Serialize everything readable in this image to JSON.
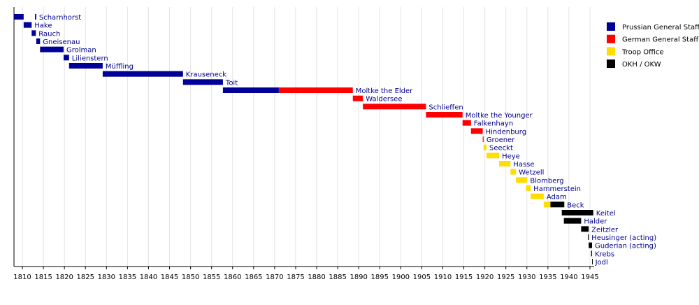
{
  "chart_data": {
    "type": "timeline",
    "xlim": [
      1808,
      1946
    ],
    "xticks": [
      1810,
      1815,
      1820,
      1825,
      1830,
      1835,
      1840,
      1845,
      1850,
      1855,
      1860,
      1865,
      1870,
      1875,
      1880,
      1885,
      1890,
      1895,
      1900,
      1905,
      1910,
      1915,
      1920,
      1925,
      1930,
      1935,
      1940,
      1945
    ],
    "grid": true,
    "legend_position": "upper right",
    "series": [
      {
        "name": "Prussian General Staff",
        "color": "#000099"
      },
      {
        "name": "German General Staff",
        "color": "#ff0000"
      },
      {
        "name": "Troop Office",
        "color": "#ffdd00"
      },
      {
        "name": "OKH / OKW",
        "color": "#000000"
      }
    ],
    "rows": [
      {
        "label": "Scharnhorst",
        "segments": [
          {
            "start": 1808,
            "end": 1810.3,
            "series": 0
          },
          {
            "start": 1813,
            "end": 1813.3,
            "series": 0
          }
        ]
      },
      {
        "label": "Hake",
        "segments": [
          {
            "start": 1810.3,
            "end": 1812.2,
            "series": 0
          }
        ]
      },
      {
        "label": "Rauch",
        "segments": [
          {
            "start": 1812.2,
            "end": 1813.2,
            "series": 0
          }
        ]
      },
      {
        "label": "Gneisenau",
        "segments": [
          {
            "start": 1813.3,
            "end": 1814.2,
            "series": 0
          }
        ]
      },
      {
        "label": "Grolman",
        "segments": [
          {
            "start": 1814.2,
            "end": 1819.8,
            "series": 0
          }
        ]
      },
      {
        "label": "Lilienstern",
        "segments": [
          {
            "start": 1819.8,
            "end": 1821.1,
            "series": 0
          }
        ]
      },
      {
        "label": "Müffling",
        "segments": [
          {
            "start": 1821.1,
            "end": 1829.1,
            "series": 0
          }
        ]
      },
      {
        "label": "Krauseneck",
        "segments": [
          {
            "start": 1829.1,
            "end": 1848.2,
            "series": 0
          }
        ]
      },
      {
        "label": "Toit",
        "segments": [
          {
            "start": 1848.2,
            "end": 1857.7,
            "series": 0
          }
        ]
      },
      {
        "label": "Moltke the Elder",
        "segments": [
          {
            "start": 1857.7,
            "end": 1871,
            "series": 0
          },
          {
            "start": 1871,
            "end": 1888.6,
            "series": 1
          }
        ]
      },
      {
        "label": "Waldersee",
        "segments": [
          {
            "start": 1888.6,
            "end": 1891,
            "series": 1
          }
        ]
      },
      {
        "label": "Schlieffen",
        "segments": [
          {
            "start": 1891,
            "end": 1906,
            "series": 1
          }
        ]
      },
      {
        "label": "Moltke the Younger",
        "segments": [
          {
            "start": 1906,
            "end": 1914.7,
            "series": 1
          }
        ]
      },
      {
        "label": "Falkenhayn",
        "segments": [
          {
            "start": 1914.7,
            "end": 1916.7,
            "series": 1
          }
        ]
      },
      {
        "label": "Hindenburg",
        "segments": [
          {
            "start": 1916.7,
            "end": 1919.5,
            "series": 1
          }
        ]
      },
      {
        "label": "Groener",
        "segments": [
          {
            "start": 1919.5,
            "end": 1919.7,
            "series": 1
          }
        ]
      },
      {
        "label": "Seeckt",
        "segments": [
          {
            "start": 1919.7,
            "end": 1920.4,
            "series": 2
          }
        ]
      },
      {
        "label": "Heye",
        "segments": [
          {
            "start": 1920.4,
            "end": 1923.4,
            "series": 2
          }
        ]
      },
      {
        "label": "Hasse",
        "segments": [
          {
            "start": 1923.4,
            "end": 1926.1,
            "series": 2
          }
        ]
      },
      {
        "label": "Wetzell",
        "segments": [
          {
            "start": 1926.1,
            "end": 1927.4,
            "series": 2
          }
        ]
      },
      {
        "label": "Blomberg",
        "segments": [
          {
            "start": 1927.4,
            "end": 1930.1,
            "series": 2
          }
        ]
      },
      {
        "label": "Hammerstein",
        "segments": [
          {
            "start": 1929.8,
            "end": 1930.9,
            "series": 2
          }
        ]
      },
      {
        "label": "Adam",
        "segments": [
          {
            "start": 1930.9,
            "end": 1934,
            "series": 2
          }
        ]
      },
      {
        "label": "Beck",
        "segments": [
          {
            "start": 1934,
            "end": 1935.6,
            "series": 2
          },
          {
            "start": 1935.6,
            "end": 1938.9,
            "series": 3
          }
        ]
      },
      {
        "label": "Keitel",
        "segments": [
          {
            "start": 1938.3,
            "end": 1945.8,
            "series": 3
          }
        ]
      },
      {
        "label": "Halder",
        "segments": [
          {
            "start": 1938.8,
            "end": 1942.9,
            "series": 3
          }
        ]
      },
      {
        "label": "Zeitzler",
        "segments": [
          {
            "start": 1942.9,
            "end": 1944.7,
            "series": 3
          }
        ]
      },
      {
        "label": "Heusinger (acting)",
        "segments": [
          {
            "start": 1944.5,
            "end": 1944.7,
            "series": 3
          }
        ]
      },
      {
        "label": "Guderian (acting)",
        "segments": [
          {
            "start": 1944.7,
            "end": 1945.5,
            "series": 3
          }
        ]
      },
      {
        "label": "Krebs",
        "segments": [
          {
            "start": 1945.3,
            "end": 1945.5,
            "series": 3
          }
        ]
      },
      {
        "label": "Jodl",
        "segments": [
          {
            "start": 1945.5,
            "end": 1945.6,
            "series": 3
          }
        ]
      }
    ]
  }
}
